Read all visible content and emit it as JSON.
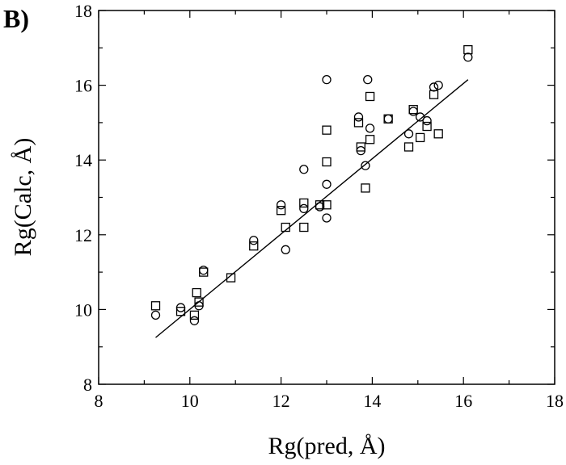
{
  "panel_label": "B)",
  "chart_data": {
    "type": "scatter",
    "xlabel": "Rg(pred, Å)",
    "ylabel": "Rg(Calc, Å)",
    "xlim": [
      8,
      18
    ],
    "ylim": [
      8,
      18
    ],
    "xticks": [
      8,
      10,
      12,
      14,
      16,
      18
    ],
    "yticks": [
      8,
      10,
      12,
      14,
      16,
      18
    ],
    "grid": false,
    "series": [
      {
        "marker": "circle",
        "points": [
          [
            9.25,
            9.85
          ],
          [
            9.8,
            10.05
          ],
          [
            10.1,
            9.7
          ],
          [
            10.2,
            10.1
          ],
          [
            10.3,
            11.05
          ],
          [
            11.4,
            11.85
          ],
          [
            12.0,
            12.8
          ],
          [
            12.1,
            11.6
          ],
          [
            12.5,
            13.75
          ],
          [
            12.5,
            12.7
          ],
          [
            12.85,
            12.75
          ],
          [
            13.0,
            12.45
          ],
          [
            13.0,
            13.35
          ],
          [
            13.0,
            16.15
          ],
          [
            13.7,
            15.15
          ],
          [
            13.75,
            14.25
          ],
          [
            13.85,
            13.85
          ],
          [
            13.9,
            16.15
          ],
          [
            13.95,
            14.85
          ],
          [
            14.35,
            15.1
          ],
          [
            14.8,
            14.7
          ],
          [
            14.9,
            15.3
          ],
          [
            15.05,
            15.15
          ],
          [
            15.2,
            15.05
          ],
          [
            15.35,
            15.95
          ],
          [
            15.45,
            16.0
          ],
          [
            16.1,
            16.75
          ]
        ]
      },
      {
        "marker": "square",
        "points": [
          [
            9.25,
            10.1
          ],
          [
            9.8,
            9.95
          ],
          [
            10.1,
            9.85
          ],
          [
            10.15,
            10.45
          ],
          [
            10.2,
            10.2
          ],
          [
            10.3,
            11.0
          ],
          [
            10.9,
            10.85
          ],
          [
            11.4,
            11.7
          ],
          [
            12.0,
            12.65
          ],
          [
            12.1,
            12.2
          ],
          [
            12.5,
            12.85
          ],
          [
            12.5,
            12.2
          ],
          [
            12.85,
            12.8
          ],
          [
            13.0,
            12.8
          ],
          [
            13.0,
            13.95
          ],
          [
            13.0,
            14.8
          ],
          [
            13.7,
            15.0
          ],
          [
            13.75,
            14.35
          ],
          [
            13.85,
            13.25
          ],
          [
            13.95,
            14.55
          ],
          [
            13.95,
            15.7
          ],
          [
            14.35,
            15.1
          ],
          [
            14.8,
            14.35
          ],
          [
            14.9,
            15.35
          ],
          [
            15.05,
            14.6
          ],
          [
            15.2,
            14.9
          ],
          [
            15.35,
            15.75
          ],
          [
            15.45,
            14.7
          ],
          [
            16.1,
            16.95
          ]
        ]
      }
    ],
    "fit_line": {
      "x": [
        9.25,
        16.1
      ],
      "y": [
        9.25,
        16.15
      ]
    }
  }
}
